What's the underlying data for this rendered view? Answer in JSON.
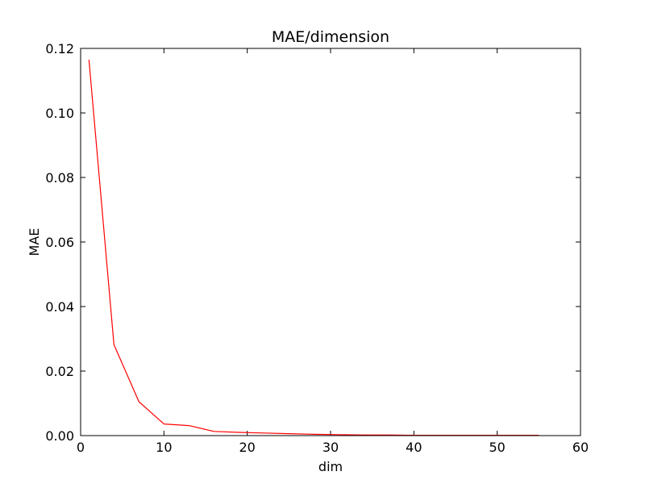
{
  "chart_data": {
    "type": "line",
    "title": "MAE/dimension",
    "xlabel": "dim",
    "ylabel": "MAE",
    "xlim": [
      0,
      60
    ],
    "ylim": [
      0,
      0.12
    ],
    "xticks": [
      "0",
      "10",
      "20",
      "30",
      "40",
      "50",
      "60"
    ],
    "yticks": [
      "0.00",
      "0.02",
      "0.04",
      "0.06",
      "0.08",
      "0.10",
      "0.12"
    ],
    "grid": false,
    "series": [
      {
        "color": "#ff0000",
        "x": [
          1,
          4,
          7,
          10,
          13,
          16,
          19,
          22,
          25,
          28,
          31,
          34,
          37,
          40,
          43,
          46,
          49,
          52,
          55
        ],
        "y": [
          0.1165,
          0.0282,
          0.0105,
          0.0036,
          0.0031,
          0.0013,
          0.001,
          0.0008,
          0.0006,
          0.0004,
          0.0003,
          0.0002,
          0.0002,
          0.0001,
          0.0001,
          0.0001,
          0.0001,
          0.0001,
          0.0001
        ]
      }
    ]
  }
}
